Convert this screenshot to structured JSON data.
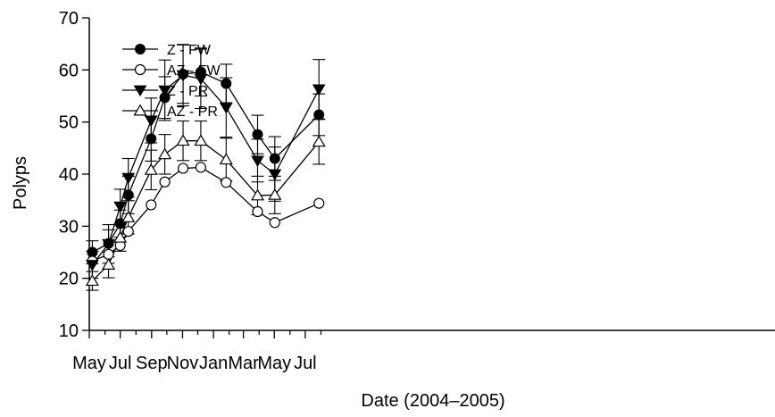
{
  "chart_data": {
    "type": "line",
    "title": "",
    "xlabel": "Date (2004–2005)",
    "ylabel": "Polyps",
    "ylim": [
      10,
      70
    ],
    "yticks": [
      10,
      20,
      30,
      40,
      50,
      60,
      70
    ],
    "xlim": [
      "2004-05-01",
      "2005-08-01"
    ],
    "x_major_ticks": [
      "2004-05-01",
      "2004-07-01",
      "2004-09-01",
      "2004-11-01",
      "2005-01-01",
      "2005-03-01",
      "2005-05-01",
      "2005-07-01"
    ],
    "x_minor_ticks": [
      "2004-06-01",
      "2004-08-01",
      "2004-10-01",
      "2004-12-01",
      "2005-02-01",
      "2005-04-01",
      "2005-06-01",
      "2005-08-01"
    ],
    "x_tick_labels": [
      "May",
      "Jul",
      "Sep",
      "Nov",
      "Jan",
      "Mar",
      "May",
      "Jul"
    ],
    "grid": false,
    "legend_position": "top-left",
    "x": [
      "2004-05-07",
      "2004-06-08",
      "2004-07-01",
      "2004-07-17",
      "2004-08-31",
      "2004-09-27",
      "2004-11-02",
      "2004-12-07",
      "2005-01-26",
      "2005-03-29",
      "2005-05-02",
      "2005-07-28"
    ],
    "series": [
      {
        "name": "Z - FW",
        "marker": "circle-filled",
        "values": [
          25.0,
          26.7,
          30.5,
          36.0,
          46.8,
          54.7,
          59.2,
          59.6,
          57.4,
          47.6,
          43.0,
          51.4
        ],
        "errors": [
          2.2,
          2.6,
          2.6,
          3.6,
          4.3,
          4.0,
          5.6,
          4.6,
          3.7,
          3.7,
          4.2,
          4.0
        ]
      },
      {
        "name": "AZ - FW",
        "marker": "circle-open",
        "values": [
          23.3,
          24.6,
          26.3,
          29.0,
          34.1,
          38.5,
          41.1,
          41.3,
          38.4,
          32.8,
          30.7,
          34.4
        ]
      },
      {
        "name": "Z - PR",
        "marker": "triangle-down-filled",
        "values": [
          22.6,
          26.6,
          33.8,
          39.3,
          50.3,
          56.1,
          59.0,
          58.3,
          52.8,
          42.6,
          40.0,
          56.3
        ],
        "errors": [
          2.6,
          3.7,
          3.3,
          3.7,
          4.3,
          5.8,
          5.9,
          5.7,
          5.7,
          4.1,
          5.2,
          5.7
        ]
      },
      {
        "name": "AZ - PR",
        "marker": "triangle-up-open",
        "values": [
          19.5,
          22.6,
          27.8,
          31.7,
          40.8,
          43.8,
          46.4,
          46.4,
          42.8,
          35.9,
          36.0,
          46.2
        ],
        "errors": [
          1.8,
          2.5,
          2.6,
          3.2,
          3.8,
          3.8,
          3.8,
          3.8,
          4.1,
          3.7,
          3.6,
          4.3
        ]
      }
    ]
  }
}
